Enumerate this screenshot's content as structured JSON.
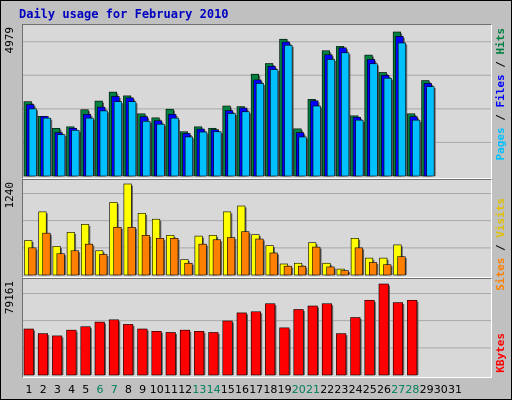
{
  "title": "Daily usage for February 2010",
  "colors": {
    "hits": "#008040",
    "files": "#0000FF",
    "pages": "#00C0FF",
    "visits": "#FFFF00",
    "sites": "#FF8000",
    "kbytes": "#FF0000",
    "weekend_label": "#00805C",
    "title": "#0000C0"
  },
  "legend_top": {
    "pages": "Pages",
    "files": "Files",
    "hits": "Hits",
    "sep": " / "
  },
  "legend_mid": {
    "sites": "Sites",
    "visits": "Visits",
    "sep": " / "
  },
  "legend_bot": {
    "kbytes": "KBytes"
  },
  "ymax": {
    "hits": "4979",
    "visits": "1240",
    "kbytes": "79161"
  },
  "chart_data": {
    "type": "bar",
    "title": "Daily usage for February 2010",
    "categories": [
      "1",
      "2",
      "3",
      "4",
      "5",
      "6",
      "7",
      "8",
      "9",
      "10",
      "11",
      "12",
      "13",
      "14",
      "15",
      "16",
      "17",
      "18",
      "19",
      "20",
      "21",
      "22",
      "23",
      "24",
      "25",
      "26",
      "27",
      "28",
      "29",
      "30",
      "31"
    ],
    "weekend_days": [
      6,
      7,
      13,
      14,
      20,
      21,
      27,
      28
    ],
    "panels": [
      {
        "name": "hits-files-pages",
        "ymax": 4979,
        "series": [
          {
            "name": "Hits",
            "values": [
              2570,
              2060,
              1650,
              1700,
              2290,
              2590,
              2900,
              2770,
              2150,
              2010,
              2310,
              1530,
              1700,
              1650,
              2420,
              2400,
              3520,
              3890,
              4729,
              1630,
              2650,
              4330,
              4480,
              2080,
              4180,
              3580,
              4979,
              2150,
              3300,
              0,
              0
            ]
          },
          {
            "name": "Files",
            "values": [
              2470,
              2060,
              1500,
              1650,
              2130,
              2380,
              2750,
              2700,
              2050,
              1910,
              2130,
              1470,
              1620,
              1600,
              2260,
              2350,
              3320,
              3790,
              4629,
              1500,
              2600,
              4190,
              4430,
              2030,
              4030,
              3480,
              4829,
              2050,
              3200,
              0,
              0
            ]
          },
          {
            "name": "Pages",
            "values": [
              2320,
              2000,
              1430,
              1580,
              2000,
              2250,
              2570,
              2570,
              1890,
              1790,
              2000,
              1350,
              1520,
              1530,
              2160,
              2220,
              3200,
              3680,
              4520,
              1350,
              2420,
              4030,
              4260,
              1930,
              3880,
              3380,
              4600,
              1930,
              3090,
              0,
              0
            ]
          }
        ]
      },
      {
        "name": "visits-sites",
        "ymax": 1240,
        "series": [
          {
            "name": "Visits",
            "values": [
              470,
              860,
              390,
              580,
              690,
              330,
              990,
              1240,
              840,
              760,
              540,
              210,
              530,
              540,
              860,
              940,
              550,
              400,
              150,
              160,
              440,
              160,
              80,
              500,
              230,
              230,
              410,
              0,
              0,
              0,
              0
            ]
          },
          {
            "name": "Sites",
            "values": [
              370,
              570,
              290,
              330,
              420,
              280,
              650,
              650,
              540,
              500,
              500,
              160,
              420,
              480,
              510,
              590,
              490,
              300,
              120,
              120,
              380,
              110,
              60,
              370,
              170,
              140,
              250,
              0,
              0,
              0,
              0
            ]
          }
        ]
      },
      {
        "name": "kbytes",
        "ymax": 79161,
        "series": [
          {
            "name": "KBytes",
            "values": [
              40000,
              36000,
              34000,
              39000,
              42000,
              46000,
              48000,
              44000,
              40000,
              38000,
              37000,
              39000,
              38000,
              37000,
              47000,
              54000,
              55000,
              62000,
              41000,
              57000,
              60000,
              62000,
              36000,
              50000,
              65000,
              79161,
              63000,
              65000,
              0,
              0,
              0
            ]
          }
        ]
      }
    ]
  }
}
